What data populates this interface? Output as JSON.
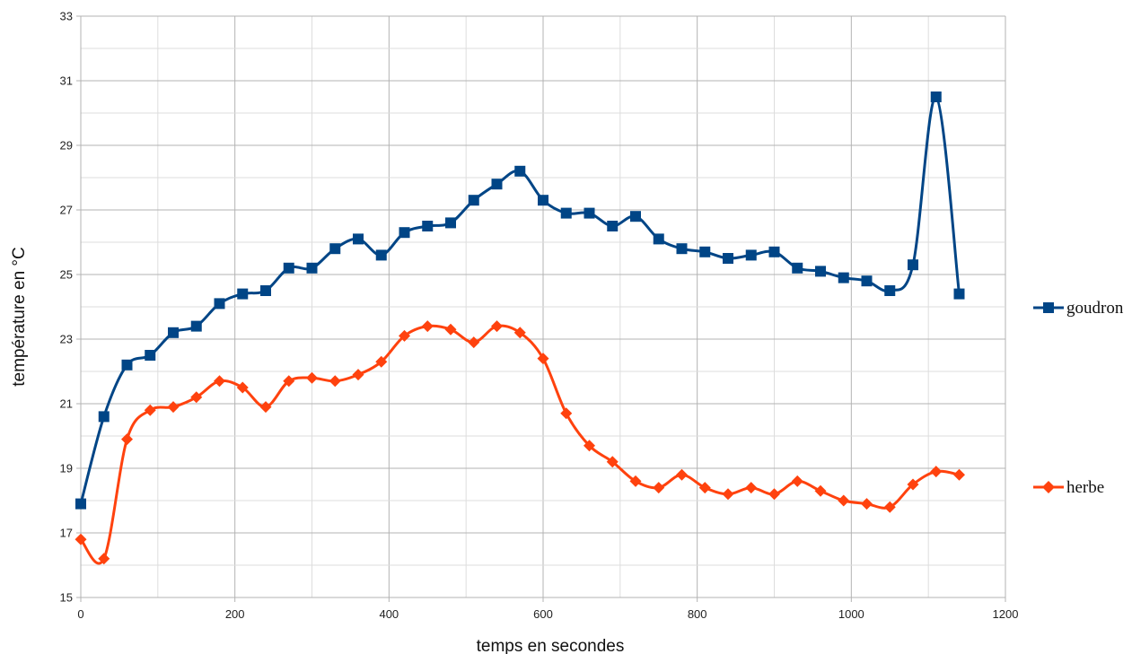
{
  "chart_data": {
    "type": "line",
    "title": "",
    "xlabel": "temps en secondes",
    "ylabel": "température en °C",
    "xlim": [
      0,
      1200
    ],
    "ylim": [
      15,
      33
    ],
    "x_ticks": [
      0,
      200,
      400,
      600,
      800,
      1000,
      1200
    ],
    "y_ticks": [
      15,
      17,
      19,
      21,
      23,
      25,
      27,
      29,
      31,
      33
    ],
    "grid": true,
    "minor_gridlines": true,
    "smooth": true,
    "legend_position": "right",
    "series": [
      {
        "name": "goudron",
        "color": "#004586",
        "marker": "square",
        "x": [
          0,
          30,
          60,
          90,
          120,
          150,
          180,
          210,
          240,
          270,
          300,
          330,
          360,
          390,
          420,
          450,
          480,
          510,
          540,
          570,
          600,
          630,
          660,
          690,
          720,
          750,
          780,
          810,
          840,
          870,
          900,
          930,
          960,
          990,
          1020,
          1050,
          1080,
          1110,
          1140
        ],
        "y": [
          17.9,
          20.6,
          22.2,
          22.5,
          23.2,
          23.4,
          24.1,
          24.4,
          24.5,
          25.2,
          25.2,
          25.8,
          26.1,
          25.6,
          26.3,
          26.5,
          26.6,
          27.3,
          27.8,
          28.2,
          27.3,
          26.9,
          26.9,
          26.5,
          26.8,
          26.1,
          25.8,
          25.7,
          25.5,
          25.6,
          25.7,
          25.2,
          25.1,
          24.9,
          24.8,
          24.5,
          25.3,
          30.5,
          24.4
        ]
      },
      {
        "name": "herbe",
        "color": "#ff420e",
        "marker": "diamond",
        "x": [
          0,
          30,
          60,
          90,
          120,
          150,
          180,
          210,
          240,
          270,
          300,
          330,
          360,
          390,
          420,
          450,
          480,
          510,
          540,
          570,
          600,
          630,
          660,
          690,
          720,
          750,
          780,
          810,
          840,
          870,
          900,
          930,
          960,
          990,
          1020,
          1050,
          1080,
          1110,
          1140
        ],
        "y": [
          16.8,
          16.2,
          19.9,
          20.8,
          20.9,
          21.2,
          21.7,
          21.5,
          20.9,
          21.7,
          21.8,
          21.7,
          21.9,
          22.3,
          23.1,
          23.4,
          23.3,
          22.9,
          23.4,
          23.2,
          22.4,
          20.7,
          19.7,
          19.2,
          18.6,
          18.4,
          18.8,
          18.4,
          18.2,
          18.4,
          18.2,
          18.6,
          18.3,
          18.0,
          17.9,
          17.8,
          18.5,
          18.9,
          18.8
        ]
      }
    ]
  }
}
